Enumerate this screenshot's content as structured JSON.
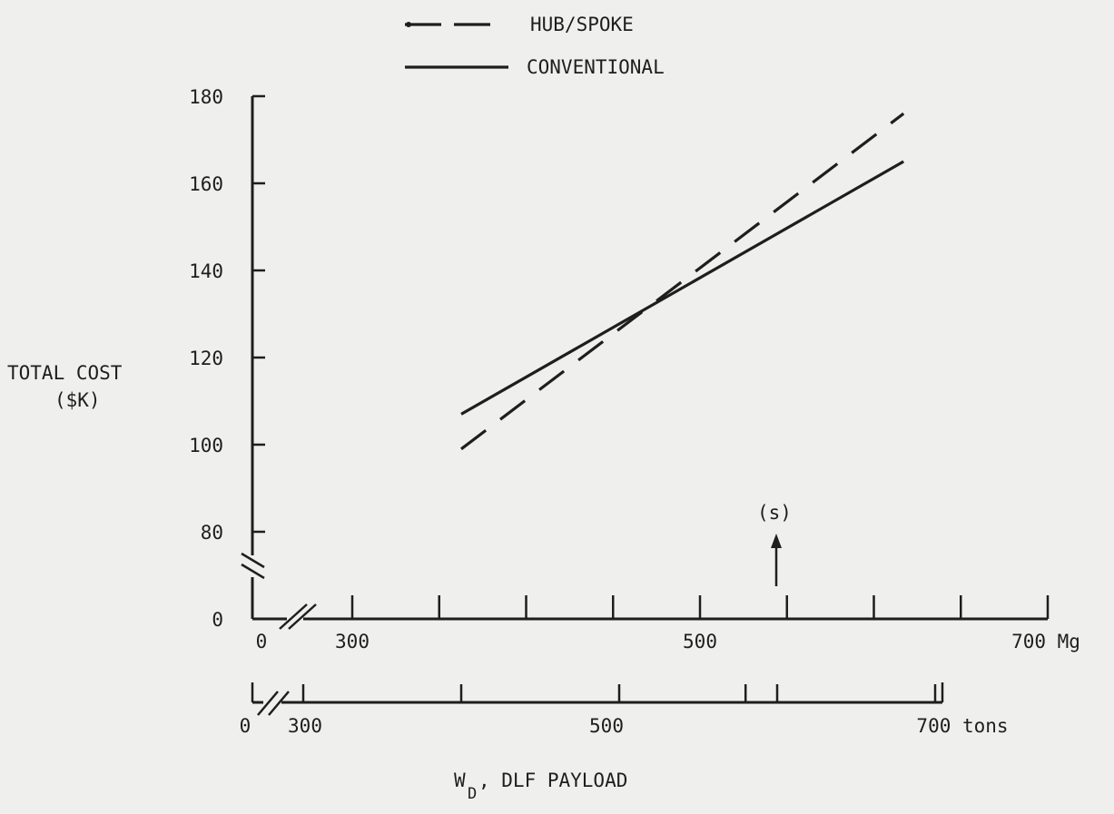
{
  "chart_data": {
    "type": "line",
    "legend": {
      "placement": "top-center",
      "entries": [
        {
          "name": "HUB/SPOKE",
          "style": "dashed"
        },
        {
          "name": "CONVENTIONAL",
          "style": "solid"
        }
      ]
    },
    "ylabel_line1": "TOTAL COST",
    "ylabel_line2": "($K)",
    "ylim": [
      80,
      180
    ],
    "y_axis_broken": true,
    "y_ticks": [
      0,
      80,
      100,
      120,
      140,
      160,
      180
    ],
    "xlabel_main": "W",
    "xlabel_sub": "D",
    "xlabel_rest": ", DLF PAYLOAD",
    "x_axes": [
      {
        "unit": "Mg",
        "range": [
          250,
          700
        ],
        "broken": true,
        "tick_values": [
          300,
          350,
          400,
          450,
          500,
          550,
          600,
          650,
          700
        ],
        "labels": [
          {
            "value": 0,
            "text": "0"
          },
          {
            "value": 300,
            "text": "300"
          },
          {
            "value": 500,
            "text": "500"
          },
          {
            "value": 700,
            "text": "700 Mg"
          }
        ]
      },
      {
        "unit": "tons",
        "range": [
          250,
          700
        ],
        "broken": true,
        "tick_values": [
          300,
          400,
          500,
          600,
          700
        ],
        "labels": [
          {
            "value": 0,
            "text": "0"
          },
          {
            "value": 300,
            "text": "300"
          },
          {
            "value": 500,
            "text": "500"
          },
          {
            "value": 700,
            "text": "700 tons"
          }
        ]
      }
    ],
    "series": [
      {
        "name": "HUB/SPOKE",
        "style": "dashed",
        "x": [
          400,
          680
        ],
        "y": [
          99,
          176
        ]
      },
      {
        "name": "CONVENTIONAL",
        "style": "solid",
        "x": [
          400,
          680
        ],
        "y": [
          107,
          165
        ]
      }
    ],
    "annotation": {
      "text": "(s)",
      "x_tons": 580
    }
  }
}
